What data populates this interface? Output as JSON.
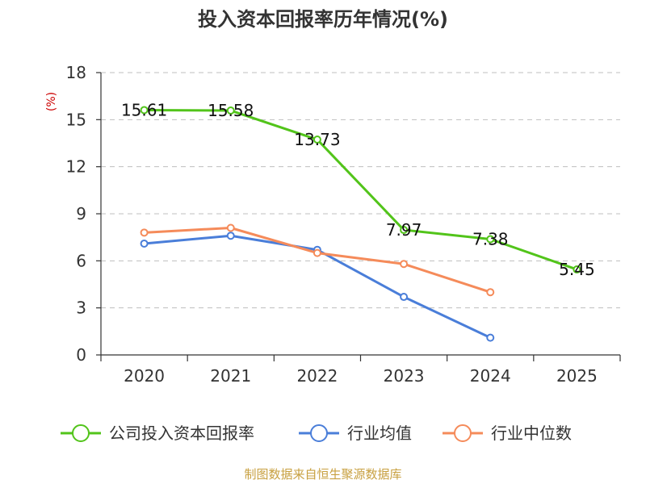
{
  "chart_data": {
    "type": "line",
    "title": "投入资本回报率历年情况(%)",
    "unit_label": "(%)",
    "categories": [
      "2020",
      "2021",
      "2022",
      "2023",
      "2024",
      "2025"
    ],
    "yticks": [
      0,
      3,
      6,
      9,
      12,
      15,
      18
    ],
    "ylim": [
      0,
      18
    ],
    "grid": true,
    "legend_position": "bottom",
    "series": [
      {
        "name": "公司投入资本回报率",
        "color": "#52c41a",
        "values": [
          15.61,
          15.58,
          13.73,
          7.97,
          7.38,
          5.45
        ],
        "labels": [
          "15.61",
          "15.58",
          "13.73",
          "7.97",
          "7.38",
          "5.45"
        ]
      },
      {
        "name": "行业均值",
        "color": "#4a7ed9",
        "values": [
          7.1,
          7.6,
          6.7,
          3.7,
          1.1,
          null
        ]
      },
      {
        "name": "行业中位数",
        "color": "#f58b5a",
        "values": [
          7.8,
          8.1,
          6.5,
          5.8,
          4.0,
          null
        ]
      }
    ],
    "source": "制图数据来自恒生聚源数据库",
    "colors": {
      "axis": "#333333",
      "unit": "#cc0000",
      "source": "#c8a040"
    }
  }
}
